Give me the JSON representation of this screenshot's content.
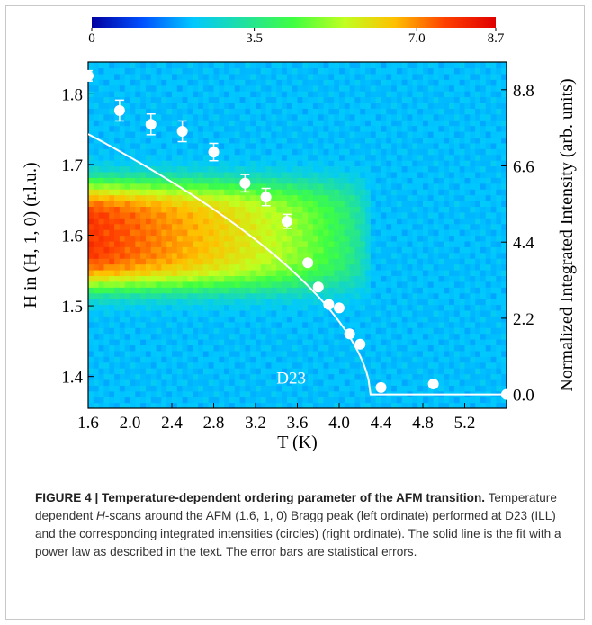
{
  "chart_data": {
    "type": "heatmap",
    "title": "",
    "xlabel": "T (K)",
    "ylabel_left": "H in (H, 1, 0) (r.l.u.)",
    "ylabel_right": "Normalized Integrated Intensity (arb. units)",
    "xlim": [
      1.6,
      5.6
    ],
    "ylim_left": [
      1.355,
      1.845
    ],
    "ylim_right": [
      -0.4,
      9.6
    ],
    "xticks": [
      "1.6",
      "2.0",
      "2.4",
      "2.8",
      "3.2",
      "3.6",
      "4.0",
      "4.4",
      "4.8",
      "5.2"
    ],
    "yticks_left": [
      "1.4",
      "1.5",
      "1.6",
      "1.7",
      "1.8"
    ],
    "yticks_right": [
      "0.0",
      "2.2",
      "4.4",
      "6.6",
      "8.8"
    ],
    "colorbar": {
      "min": 0,
      "max": 8.7,
      "ticks": [
        "0",
        "3.5",
        "7.0",
        "8.7"
      ],
      "colors": [
        "#0000a0",
        "#0050ff",
        "#00c8ff",
        "#20e0a0",
        "#40ff40",
        "#c0ff20",
        "#ffc000",
        "#ff4000",
        "#e00000"
      ]
    },
    "annotation": "D23",
    "heatmap_peak": {
      "center_H": 1.6,
      "half_width_H": 0.065,
      "max_intensity": 8.0
    },
    "series": [
      {
        "kind": "points",
        "axis": "right",
        "x": [
          1.6,
          1.9,
          2.2,
          2.5,
          2.8,
          3.1,
          3.3,
          3.5,
          3.7,
          3.8,
          3.9,
          4.0,
          4.1,
          4.2,
          4.4,
          4.9,
          5.6
        ],
        "y": [
          9.2,
          8.2,
          7.8,
          7.6,
          7.0,
          6.1,
          5.7,
          5.0,
          3.8,
          3.1,
          2.6,
          2.5,
          1.75,
          1.45,
          0.2,
          0.3,
          0.0
        ],
        "err": [
          0.15,
          0.3,
          0.3,
          0.3,
          0.25,
          0.25,
          0.25,
          0.2,
          0,
          0,
          0,
          0,
          0,
          0,
          0,
          0,
          0
        ]
      },
      {
        "kind": "fit_line",
        "axis": "right",
        "Tc": 4.3,
        "amplitude": 9.85,
        "exponent": 0.58
      }
    ]
  },
  "caption": {
    "label": "FIGURE 4 | Temperature-dependent ordering parameter of the AFM transition.",
    "text_1": "Temperature dependent ",
    "text_H": "H",
    "text_2": "-scans around the AFM (1.6, 1, 0) Bragg peak (left ordinate) performed at D23 (ILL) and the corresponding integrated intensities (circles) (right ordinate). The solid line is the fit with a power law as described in the text. The error bars are statistical errors."
  }
}
